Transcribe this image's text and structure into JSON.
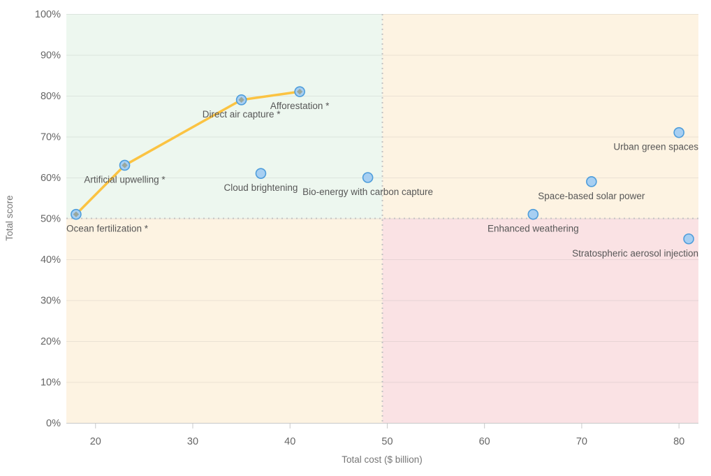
{
  "chart_data": {
    "type": "scatter",
    "title": "",
    "xlabel": "Total cost ($ billion)",
    "ylabel": "Total score",
    "xlim": [
      17,
      82
    ],
    "ylim": [
      0,
      100
    ],
    "grid": "horizontal-only",
    "legend": "none",
    "axes": {
      "x": {
        "title": "Total cost ($ billion)",
        "ticks": [
          20,
          30,
          40,
          50,
          60,
          70,
          80
        ]
      },
      "y": {
        "title": "Total score",
        "tick_values": [
          0,
          10,
          20,
          30,
          40,
          50,
          60,
          70,
          80,
          90,
          100
        ],
        "tick_labels": [
          "0%",
          "10%",
          "20%",
          "30%",
          "40%",
          "50%",
          "60%",
          "70%",
          "80%",
          "90%",
          "100%"
        ]
      }
    },
    "thresholds": {
      "x": 49.5,
      "y": 50
    },
    "points": [
      {
        "label": "Ocean fertilization *",
        "x": 18,
        "y": 51,
        "frontier": true
      },
      {
        "label": "Artificial upwelling *",
        "x": 23,
        "y": 63,
        "frontier": true
      },
      {
        "label": "Direct air capture *",
        "x": 35,
        "y": 79,
        "frontier": true
      },
      {
        "label": "Afforestation *",
        "x": 41,
        "y": 81,
        "frontier": true
      },
      {
        "label": "Cloud brightening",
        "x": 37,
        "y": 61,
        "frontier": false
      },
      {
        "label": "Bio-energy with carbon capture",
        "x": 48,
        "y": 60,
        "frontier": false
      },
      {
        "label": "Enhanced weathering",
        "x": 65,
        "y": 51,
        "frontier": false
      },
      {
        "label": "Space-based solar power",
        "x": 71,
        "y": 59,
        "frontier": false
      },
      {
        "label": "Urban green spaces",
        "x": 80,
        "y": 71,
        "frontier": false
      },
      {
        "label": "Stratospheric aerosol injection",
        "x": 81,
        "y": 45,
        "frontier": false
      }
    ],
    "colors": {
      "quadrant_top_left": "#edf7ef",
      "quadrant_top_right": "#fdf3e2",
      "quadrant_bottom_left": "#fdf3e2",
      "quadrant_bottom_right": "#fae2e4",
      "frontier_line": "#fbc342",
      "marker_fill": "#a7cff2",
      "marker_stroke": "#4e9ddb",
      "frontier_marker_inner": "#98a295",
      "gridline": "rgba(120,120,120,0.14)",
      "threshold_dots": "#c2c2c2",
      "axis_line": "#c8c8c8",
      "tick_text": "#666666",
      "label_text": "#575757",
      "axis_title_text": "#767676"
    }
  }
}
